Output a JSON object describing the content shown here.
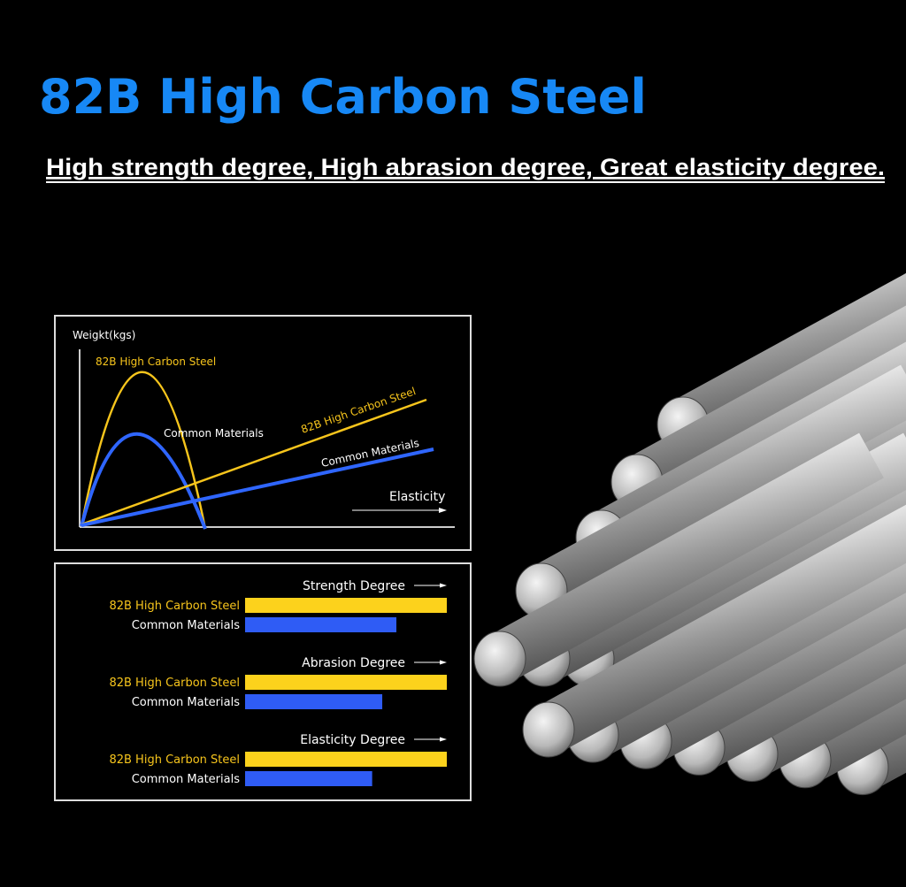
{
  "title": "82B High Carbon Steel",
  "subtitle": "High strength degree, High abrasion degree, Great elasticity degree.",
  "curve_chart": {
    "y_label": "Weigkt(kgs)",
    "x_label": "Elasticity",
    "curve_labels": [
      "82B High Carbon Steel",
      "Common Materials"
    ],
    "line_labels": [
      "82B High Carbon Steel",
      "Common Materials"
    ]
  },
  "bar_groups": [
    {
      "title": "Strength Degree",
      "bars": [
        {
          "label": "82B High Carbon Steel",
          "value": 100
        },
        {
          "label": "Common Materials",
          "value": 75
        }
      ]
    },
    {
      "title": "Abrasion Degree",
      "bars": [
        {
          "label": "82B High Carbon Steel",
          "value": 100
        },
        {
          "label": "Common Materials",
          "value": 68
        }
      ]
    },
    {
      "title": "Elasticity Degree",
      "bars": [
        {
          "label": "82B High Carbon Steel",
          "value": 100
        },
        {
          "label": "Common Materials",
          "value": 63
        }
      ]
    }
  ]
}
